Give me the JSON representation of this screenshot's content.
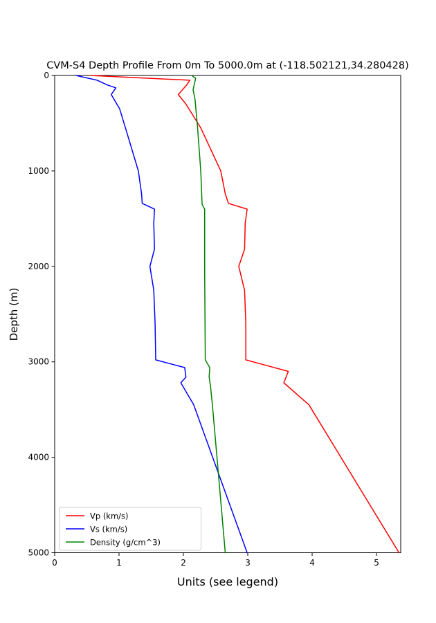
{
  "chart_data": {
    "type": "line",
    "title": "CVM-S4 Depth Profile From 0m To 5000.0m at (-118.502121,34.280428)",
    "xlabel": "Units (see legend)",
    "ylabel": "Depth (m)",
    "xlim": [
      0,
      5.376
    ],
    "ylim": [
      0,
      5000
    ],
    "y_axis_inverted_depth_down": true,
    "grid": false,
    "x_ticks": [
      0,
      1,
      2,
      3,
      4,
      5
    ],
    "y_ticks": [
      0,
      1000,
      2000,
      3000,
      4000,
      5000
    ],
    "legend_position": "lower left",
    "series": [
      {
        "name": "Vp (km/s)",
        "color": "#ff0000",
        "points_depth_value": [
          [
            0,
            0.55
          ],
          [
            50,
            2.1
          ],
          [
            100,
            2.05
          ],
          [
            200,
            1.92
          ],
          [
            300,
            2.04
          ],
          [
            550,
            2.27
          ],
          [
            1000,
            2.58
          ],
          [
            1240,
            2.65
          ],
          [
            1340,
            2.7
          ],
          [
            1400,
            2.99
          ],
          [
            1550,
            2.96
          ],
          [
            1820,
            2.95
          ],
          [
            2000,
            2.86
          ],
          [
            2250,
            2.95
          ],
          [
            2600,
            2.97
          ],
          [
            2980,
            2.97
          ],
          [
            3100,
            3.63
          ],
          [
            3220,
            3.56
          ],
          [
            3450,
            3.95
          ],
          [
            5000,
            5.35
          ]
        ]
      },
      {
        "name": "Vs (km/s)",
        "color": "#0000ff",
        "points_depth_value": [
          [
            0,
            0.33
          ],
          [
            50,
            0.66
          ],
          [
            100,
            0.82
          ],
          [
            130,
            0.95
          ],
          [
            200,
            0.88
          ],
          [
            350,
            1.01
          ],
          [
            550,
            1.1
          ],
          [
            1000,
            1.3
          ],
          [
            1240,
            1.35
          ],
          [
            1340,
            1.36
          ],
          [
            1400,
            1.55
          ],
          [
            1550,
            1.54
          ],
          [
            1820,
            1.55
          ],
          [
            2000,
            1.48
          ],
          [
            2250,
            1.54
          ],
          [
            2600,
            1.56
          ],
          [
            2980,
            1.57
          ],
          [
            3060,
            2.02
          ],
          [
            3160,
            2.04
          ],
          [
            3220,
            1.96
          ],
          [
            3450,
            2.16
          ],
          [
            5000,
            2.99
          ]
        ]
      },
      {
        "name": "Density (g/cm^3)",
        "color": "#008000",
        "points_depth_value": [
          [
            0,
            2.13
          ],
          [
            30,
            2.19
          ],
          [
            150,
            2.15
          ],
          [
            250,
            2.18
          ],
          [
            550,
            2.22
          ],
          [
            1000,
            2.27
          ],
          [
            1350,
            2.29
          ],
          [
            1400,
            2.33
          ],
          [
            2000,
            2.33
          ],
          [
            2980,
            2.34
          ],
          [
            3060,
            2.41
          ],
          [
            3160,
            2.4
          ],
          [
            3250,
            2.42
          ],
          [
            3450,
            2.45
          ],
          [
            5000,
            2.65
          ]
        ]
      }
    ]
  }
}
